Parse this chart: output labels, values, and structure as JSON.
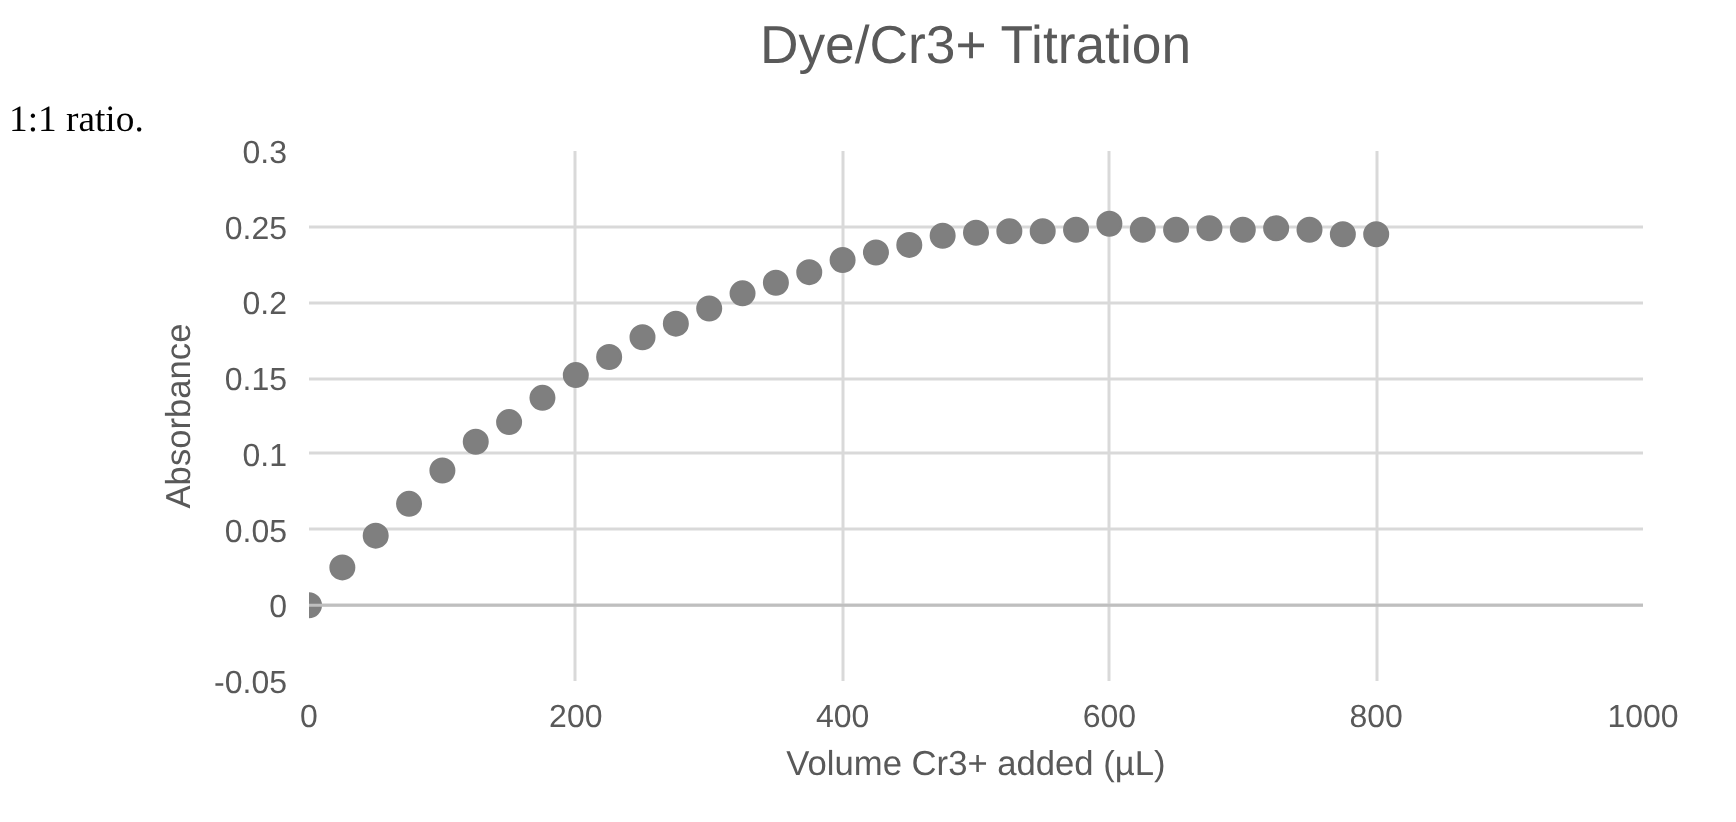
{
  "chart_data": {
    "type": "scatter",
    "title": "Dye/Cr3+ Titration",
    "xlabel": "Volume Cr3+ added (µL)",
    "ylabel": "Absorbance",
    "annotations": [
      "1:1 ratio."
    ],
    "x": [
      0,
      25,
      50,
      75,
      100,
      125,
      150,
      175,
      200,
      225,
      250,
      275,
      300,
      325,
      350,
      375,
      400,
      425,
      450,
      475,
      500,
      525,
      550,
      575,
      600,
      625,
      650,
      675,
      700,
      725,
      750,
      775,
      800
    ],
    "series": [
      {
        "color": "#7f7f7f",
        "values": [
          0,
          0.025,
          0.046,
          0.067,
          0.089,
          0.108,
          0.121,
          0.137,
          0.152,
          0.164,
          0.177,
          0.186,
          0.196,
          0.206,
          0.213,
          0.22,
          0.228,
          0.233,
          0.238,
          0.244,
          0.246,
          0.247,
          0.247,
          0.248,
          0.252,
          0.248,
          0.248,
          0.249,
          0.248,
          0.249,
          0.248,
          0.245,
          0.245
        ]
      }
    ],
    "xlim": [
      0,
      1000
    ],
    "xticks": [
      0,
      200,
      400,
      600,
      800,
      1000
    ],
    "ylim": [
      -0.05,
      0.3
    ],
    "yticks": [
      -0.05,
      0,
      0.05,
      0.1,
      0.15,
      0.2,
      0.25,
      0.3
    ],
    "grid": true,
    "marker": "circle"
  }
}
